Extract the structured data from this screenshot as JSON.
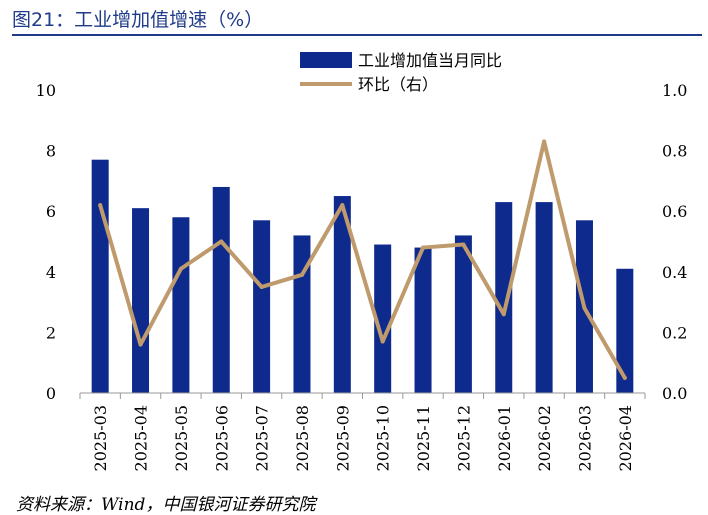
{
  "header": {
    "title": "图21：工业增加值增速（%）"
  },
  "footer": {
    "source": "资料来源：Wind，中国银河证券研究院"
  },
  "colors": {
    "bar": "#0d2a8c",
    "line": "#bf9a6c",
    "title": "#1f3b8a"
  },
  "chart_data": {
    "type": "bar",
    "categories": [
      "2025-03",
      "2025-04",
      "2025-05",
      "2025-06",
      "2025-07",
      "2025-08",
      "2025-09",
      "2025-10",
      "2025-11",
      "2025-12",
      "2026-01",
      "2026-02",
      "2026-03",
      "2026-04"
    ],
    "series": [
      {
        "name": "工业增加值当月同比",
        "type": "bar",
        "axis": "left",
        "values": [
          7.7,
          6.1,
          5.8,
          6.8,
          5.7,
          5.2,
          6.5,
          4.9,
          4.8,
          5.2,
          6.3,
          6.3,
          5.7,
          4.1
        ]
      },
      {
        "name": "环比（右）",
        "type": "line",
        "axis": "right",
        "values": [
          0.62,
          0.16,
          0.41,
          0.5,
          0.35,
          0.39,
          0.62,
          0.17,
          0.48,
          0.49,
          0.26,
          0.83,
          0.28,
          0.05
        ]
      }
    ],
    "y_left": {
      "min": 0,
      "max": 10,
      "ticks": [
        "0",
        "2",
        "4",
        "6",
        "8",
        "10"
      ]
    },
    "y_right": {
      "min": 0,
      "max": 1.0,
      "ticks": [
        "0.0",
        "0.2",
        "0.4",
        "0.6",
        "0.8",
        "1.0"
      ]
    },
    "grid": false,
    "legend_position": "top-center"
  }
}
